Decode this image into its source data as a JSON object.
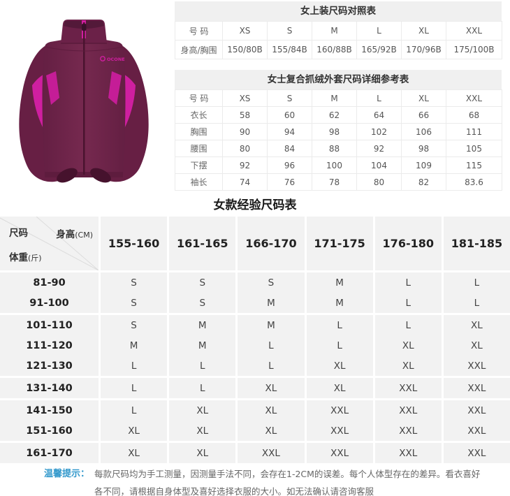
{
  "colors": {
    "jacket_plum": "#6e2349",
    "jacket_plum_dark": "#591b3c",
    "accent_magenta": "#cf1fa0",
    "table_header_bg": "#f0f0f0",
    "big_table_cell_bg": "#f2f2f2",
    "tips_label_blue": "#3399cc"
  },
  "product": {
    "description": "women purple fleece zip jacket with magenta side panels",
    "logo_text": "OCONE"
  },
  "top_size_table": {
    "title": "女上装尺码对照表",
    "header": [
      "号 码",
      "XS",
      "S",
      "M",
      "L",
      "XL",
      "XXL"
    ],
    "rows": [
      [
        "身高/胸围",
        "150/80B",
        "155/84B",
        "160/88B",
        "165/92B",
        "170/96B",
        "175/100B"
      ]
    ]
  },
  "detail_size_table": {
    "title": "女士复合抓绒外套尺码详细参考表",
    "header": [
      "号 码",
      "XS",
      "S",
      "M",
      "L",
      "XL",
      "XXL"
    ],
    "rows": [
      [
        "衣长",
        "58",
        "60",
        "62",
        "64",
        "66",
        "68"
      ],
      [
        "胸围",
        "90",
        "94",
        "98",
        "102",
        "106",
        "111"
      ],
      [
        "腰围",
        "80",
        "84",
        "88",
        "92",
        "98",
        "105"
      ],
      [
        "下摆",
        "92",
        "96",
        "100",
        "104",
        "109",
        "115"
      ],
      [
        "袖长",
        "74",
        "76",
        "78",
        "80",
        "82",
        "83.6"
      ]
    ]
  },
  "experience_size_table": {
    "title": "女款经验尺码表",
    "corner": {
      "size_label": "尺码",
      "height_label": "身高",
      "height_unit": "(CM)",
      "weight_label": "体重",
      "weight_unit": "(斤)"
    },
    "height_columns": [
      "155-160",
      "161-165",
      "166-170",
      "171-175",
      "176-180",
      "181-185"
    ],
    "weight_rows": [
      {
        "weight": "81-90",
        "sizes": [
          "S",
          "S",
          "S",
          "M",
          "L",
          "L"
        ],
        "sep": false
      },
      {
        "weight": "91-100",
        "sizes": [
          "S",
          "S",
          "M",
          "M",
          "L",
          "L"
        ],
        "sep": true
      },
      {
        "weight": "101-110",
        "sizes": [
          "S",
          "M",
          "M",
          "L",
          "L",
          "XL"
        ],
        "sep": false
      },
      {
        "weight": "111-120",
        "sizes": [
          "M",
          "M",
          "L",
          "L",
          "XL",
          "XL"
        ],
        "sep": false
      },
      {
        "weight": "121-130",
        "sizes": [
          "L",
          "L",
          "L",
          "XL",
          "XL",
          "XXL"
        ],
        "sep": true
      },
      {
        "weight": "131-140",
        "sizes": [
          "L",
          "L",
          "XL",
          "XL",
          "XXL",
          "XXL"
        ],
        "sep": true
      },
      {
        "weight": "141-150",
        "sizes": [
          "L",
          "XL",
          "XL",
          "XXL",
          "XXL",
          "XXL"
        ],
        "sep": false
      },
      {
        "weight": "151-160",
        "sizes": [
          "XL",
          "XL",
          "XL",
          "XXL",
          "XXL",
          "XXL"
        ],
        "sep": true
      },
      {
        "weight": "161-170",
        "sizes": [
          "XL",
          "XL",
          "XXL",
          "XXL",
          "XXL",
          "XXL"
        ],
        "sep": false
      }
    ]
  },
  "tips": {
    "label": "温馨提示：",
    "line1": "每款尺码均为手工测量，因测量手法不同，会存在1-2CM的误差。每个人体型存在的差异。看衣喜好",
    "line2": "各不同，请根据自身体型及喜好选择衣服的大小。如无法确认请咨询客服"
  }
}
